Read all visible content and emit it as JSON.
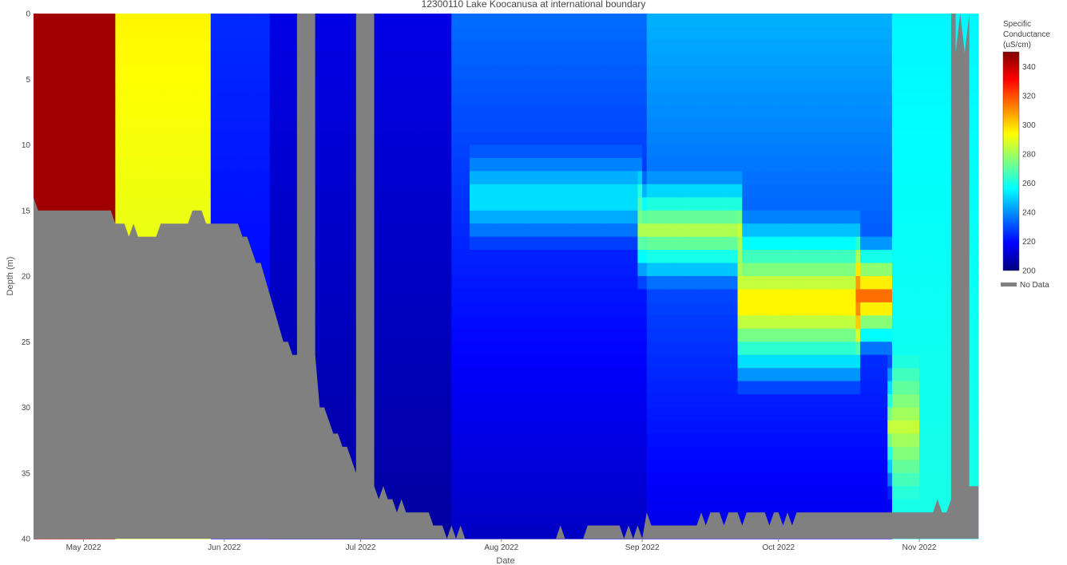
{
  "chart_data": {
    "type": "heatmap",
    "title": "12300110 Lake Koocanusa at international boundary",
    "xlabel": "Date",
    "ylabel": "Depth (m)",
    "x_ticks": [
      "May 2022",
      "Jun 2022",
      "Jul 2022",
      "Aug 2022",
      "Sep 2022",
      "Oct 2022",
      "Nov 2022"
    ],
    "x_tick_dates": [
      "2022-05-01",
      "2022-06-01",
      "2022-07-01",
      "2022-08-01",
      "2022-09-01",
      "2022-10-01",
      "2022-11-01"
    ],
    "xlim": [
      "2022-04-20",
      "2022-11-14"
    ],
    "ylim": [
      40,
      0
    ],
    "y_ticks": [
      0,
      5,
      10,
      15,
      20,
      25,
      30,
      35,
      40
    ],
    "colorbar": {
      "title_lines": [
        "Specific",
        "Conductance",
        "(uS/cm)"
      ],
      "range": [
        200,
        350
      ],
      "ticks": [
        200,
        220,
        240,
        260,
        280,
        300,
        320,
        340
      ],
      "colorscale": [
        "#00007f",
        "#0000ff",
        "#007fff",
        "#00ffff",
        "#7fff7f",
        "#ffff00",
        "#ff7f00",
        "#ff0000",
        "#7f0000"
      ]
    },
    "no_data_color": "#808080",
    "legend": {
      "label": "No Data",
      "placement": "right"
    },
    "max_depth": [
      [
        "2022-04-20",
        14
      ],
      [
        "2022-04-21",
        15
      ],
      [
        "2022-05-07",
        15
      ],
      [
        "2022-05-08",
        16
      ],
      [
        "2022-05-10",
        16
      ],
      [
        "2022-05-11",
        17
      ],
      [
        "2022-05-12",
        16
      ],
      [
        "2022-05-13",
        17
      ],
      [
        "2022-05-17",
        17
      ],
      [
        "2022-05-18",
        16
      ],
      [
        "2022-05-24",
        16
      ],
      [
        "2022-05-25",
        15
      ],
      [
        "2022-05-27",
        15
      ],
      [
        "2022-05-28",
        16
      ],
      [
        "2022-06-04",
        16
      ],
      [
        "2022-06-05",
        17
      ],
      [
        "2022-06-06",
        17
      ],
      [
        "2022-06-08",
        19
      ],
      [
        "2022-06-09",
        19
      ],
      [
        "2022-06-14",
        25
      ],
      [
        "2022-06-15",
        25
      ],
      [
        "2022-06-16",
        26
      ],
      [
        "2022-06-17",
        26
      ],
      [
        "2022-06-17",
        0
      ],
      [
        "2022-06-21",
        0
      ],
      [
        "2022-06-21",
        26
      ],
      [
        "2022-06-22",
        30
      ],
      [
        "2022-06-23",
        30
      ],
      [
        "2022-06-25",
        32
      ],
      [
        "2022-06-26",
        32
      ],
      [
        "2022-06-27",
        33
      ],
      [
        "2022-06-28",
        33
      ],
      [
        "2022-06-30",
        35
      ],
      [
        "2022-06-30",
        0
      ],
      [
        "2022-07-04",
        0
      ],
      [
        "2022-07-04",
        36
      ],
      [
        "2022-07-05",
        37
      ],
      [
        "2022-07-06",
        36
      ],
      [
        "2022-07-07",
        37
      ],
      [
        "2022-07-08",
        37
      ],
      [
        "2022-07-09",
        38
      ],
      [
        "2022-07-10",
        37
      ],
      [
        "2022-07-11",
        38
      ],
      [
        "2022-07-16",
        38
      ],
      [
        "2022-07-17",
        39
      ],
      [
        "2022-07-19",
        39
      ],
      [
        "2022-07-20",
        40
      ],
      [
        "2022-07-21",
        39
      ],
      [
        "2022-07-22",
        40
      ],
      [
        "2022-07-23",
        39
      ],
      [
        "2022-07-24",
        40
      ],
      [
        "2022-08-13",
        40
      ],
      [
        "2022-08-14",
        39
      ],
      [
        "2022-08-15",
        40
      ],
      [
        "2022-08-19",
        40
      ],
      [
        "2022-08-20",
        39
      ],
      [
        "2022-08-27",
        39
      ],
      [
        "2022-08-28",
        40
      ],
      [
        "2022-08-29",
        39
      ],
      [
        "2022-08-30",
        40
      ],
      [
        "2022-08-31",
        39
      ],
      [
        "2022-09-01",
        40
      ],
      [
        "2022-09-02",
        38
      ],
      [
        "2022-09-03",
        39
      ],
      [
        "2022-09-13",
        39
      ],
      [
        "2022-09-14",
        38
      ],
      [
        "2022-09-15",
        39
      ],
      [
        "2022-09-16",
        38
      ],
      [
        "2022-09-18",
        38
      ],
      [
        "2022-09-19",
        39
      ],
      [
        "2022-09-20",
        38
      ],
      [
        "2022-09-22",
        38
      ],
      [
        "2022-09-23",
        39
      ],
      [
        "2022-09-24",
        38
      ],
      [
        "2022-09-28",
        38
      ],
      [
        "2022-09-29",
        39
      ],
      [
        "2022-09-30",
        38
      ],
      [
        "2022-10-01",
        38
      ],
      [
        "2022-10-02",
        39
      ],
      [
        "2022-10-03",
        38
      ],
      [
        "2022-10-04",
        39
      ],
      [
        "2022-10-05",
        38
      ],
      [
        "2022-11-04",
        38
      ],
      [
        "2022-11-05",
        37
      ],
      [
        "2022-11-06",
        38
      ],
      [
        "2022-11-07",
        38
      ],
      [
        "2022-11-08",
        37
      ],
      [
        "2022-11-08",
        0
      ],
      [
        "2022-11-09",
        0
      ],
      [
        "2022-11-09",
        3
      ],
      [
        "2022-11-10",
        0
      ],
      [
        "2022-11-11",
        3
      ],
      [
        "2022-11-12",
        0
      ],
      [
        "2022-11-12",
        36
      ],
      [
        "2022-11-14",
        36
      ]
    ],
    "values_by_period": [
      {
        "from": "2022-04-20",
        "to": "2022-05-07",
        "surface": 345,
        "bottom": 345
      },
      {
        "from": "2022-05-08",
        "to": "2022-05-28",
        "surface": 295,
        "bottom": 285
      },
      {
        "from": "2022-05-29",
        "to": "2022-06-10",
        "surface": 225,
        "bottom": 215
      },
      {
        "from": "2022-06-10",
        "to": "2022-07-20",
        "surface": 215,
        "bottom": 205
      },
      {
        "from": "2022-07-20",
        "to": "2022-09-01",
        "surface": 235,
        "bottom": 210
      },
      {
        "from": "2022-09-01",
        "to": "2022-10-25",
        "surface": 245,
        "bottom": 215
      },
      {
        "from": "2022-10-25",
        "to": "2022-11-14",
        "surface": 255,
        "bottom": 260
      }
    ],
    "plume": [
      {
        "from": "2022-07-25",
        "to": "2022-08-31",
        "top": 10,
        "bottom": 18,
        "peak": 255
      },
      {
        "from": "2022-08-31",
        "to": "2022-09-22",
        "top": 12,
        "bottom": 21,
        "peak": 282
      },
      {
        "from": "2022-09-22",
        "to": "2022-10-18",
        "top": 15,
        "bottom": 29,
        "peak": 300
      },
      {
        "from": "2022-10-18",
        "to": "2022-10-25",
        "top": 17,
        "bottom": 26,
        "peak": 315
      },
      {
        "from": "2022-10-25",
        "to": "2022-10-31",
        "top": 26,
        "bottom": 37,
        "peak": 285
      }
    ]
  }
}
